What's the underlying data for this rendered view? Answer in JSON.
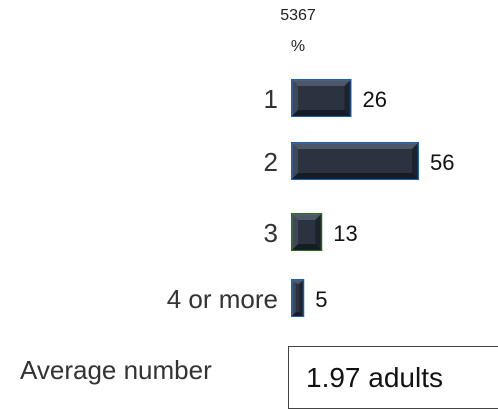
{
  "header": {
    "line1": "5367",
    "line2": "%"
  },
  "chart_data": {
    "type": "bar",
    "orientation": "horizontal",
    "categories": [
      "1",
      "2",
      "3",
      "4 or more"
    ],
    "values": [
      26,
      56,
      13,
      5
    ],
    "data_labels": [
      "26",
      "56",
      "13",
      "5"
    ],
    "colors": {
      "bar_face": "#2b3240",
      "bar_dark": "#141922",
      "bar_light": "#5b6474",
      "outline_blue": "#1f5fb0",
      "outline_green": "#2d6b1f"
    },
    "outline_by_bar": [
      "blue",
      "blue",
      "green",
      "blue"
    ],
    "style": "beveled 3D bars",
    "grid": false,
    "legend": "none"
  },
  "summary": {
    "label": "Average number",
    "value": "1.97 adults"
  }
}
